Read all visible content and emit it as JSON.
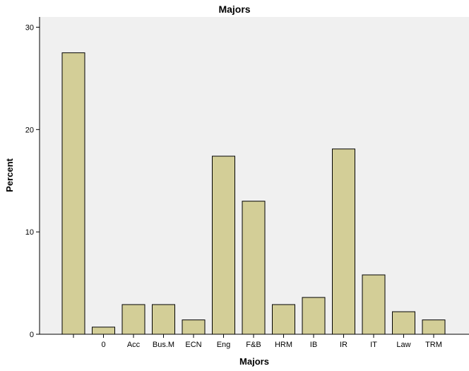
{
  "chart_data": {
    "type": "bar",
    "title": "Majors",
    "xlabel": "Majors",
    "ylabel": "Percent",
    "categories": [
      "",
      "0",
      "Acc",
      "Bus.M",
      "ECN",
      "Eng",
      "F&B",
      "HRM",
      "IB",
      "IR",
      "IT",
      "Law",
      "TRM"
    ],
    "values": [
      27.5,
      0.7,
      2.9,
      2.9,
      1.4,
      17.4,
      13.0,
      2.9,
      3.6,
      18.1,
      5.8,
      2.2,
      1.4
    ],
    "ylim": [
      0,
      31
    ],
    "yticks": [
      0,
      10,
      20,
      30
    ],
    "grid": false,
    "legend": "none",
    "colors": {
      "plot_background": "#f0f0f0",
      "bar_fill": "#d3ce97",
      "bar_stroke": "#000000"
    }
  }
}
